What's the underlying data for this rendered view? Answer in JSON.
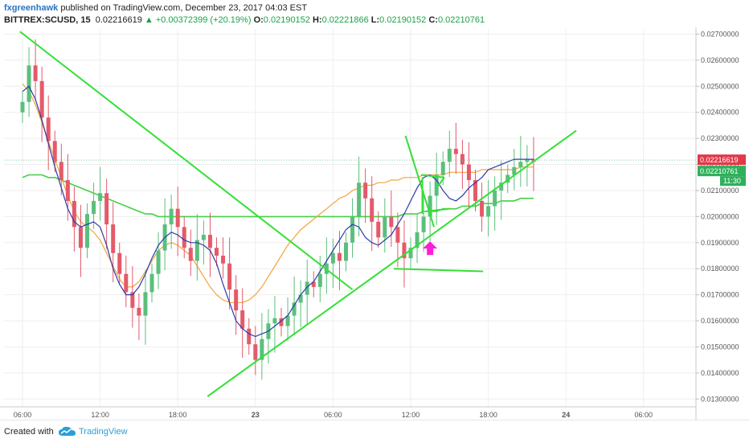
{
  "header": {
    "author": "fxgreenhawk",
    "published": "published on TradingView.com, December 23, 2017 04:03 EST",
    "symbol": "BITTREX:SCUSD, 15",
    "last": "0.02216619",
    "change": "▲ +0.00372399 (+20.19%)",
    "o_label": "O:",
    "o": "0.02190152",
    "h_label": "H:",
    "h": "0.02221866",
    "l_label": "L:",
    "l": "0.02190152",
    "c_label": "C:",
    "c": "0.02210761"
  },
  "footer": {
    "created_with": "Created with",
    "brand": "TradingView"
  },
  "colors": {
    "up": "#5bbf7c",
    "down": "#e45a6a",
    "ma_fast": "#2d3aa8",
    "ma_mid": "#f2a43c",
    "ma_slow": "#46d046",
    "trend": "#33e033",
    "arrow": "#ff1fd8",
    "price_badge": "#e0394a",
    "close_badge": "#2fb05b"
  },
  "chart_data": {
    "type": "candlestick",
    "title": "BITTREX:SCUSD, 15",
    "x_ticks": [
      "06:00",
      "12:00",
      "18:00",
      "23",
      "06:00",
      "12:00",
      "18:00",
      "24",
      "06:00"
    ],
    "y_ticks": [
      "0.02700000",
      "0.02600000",
      "0.02500000",
      "0.02400000",
      "0.02300000",
      "0.02200000",
      "0.02100000",
      "0.02000000",
      "0.01900000",
      "0.01800000",
      "0.01700000",
      "0.01600000",
      "0.01500000",
      "0.01400000",
      "0.01300000"
    ],
    "ylim": [
      0.0127,
      0.0272
    ],
    "price_labels": {
      "last": "0.02216619",
      "close": "0.02210761",
      "countdown": "11:30"
    },
    "candles_hours": [
      0.0,
      0.5,
      1.0,
      1.5,
      2.0,
      2.5,
      3.0,
      3.5,
      4.0,
      4.5,
      5.0,
      5.5,
      6.0,
      6.5,
      7.0,
      7.5,
      8.0,
      8.5,
      9.0,
      9.5,
      10.0,
      10.5,
      11.0,
      11.5,
      12.0,
      12.5,
      13.0,
      13.5,
      14.0,
      14.5,
      15.0,
      15.5,
      16.0,
      16.5,
      17.0,
      17.5,
      18.0,
      18.5,
      19.0,
      19.5,
      20.0,
      20.5,
      21.0,
      21.5,
      22.0,
      22.5,
      23.0,
      23.5,
      24.0,
      24.5,
      25.0,
      25.5,
      26.0,
      26.5,
      27.0,
      27.5,
      28.0,
      28.5,
      29.0,
      29.5,
      30.0,
      30.5,
      31.0,
      31.5,
      32.0,
      32.5,
      33.0,
      33.5,
      34.0,
      34.5,
      35.0,
      35.5,
      36.0,
      36.5,
      37.0,
      37.5,
      38.0,
      38.5,
      39.0,
      39.5
    ],
    "close": [
      0.0244,
      0.0258,
      0.0252,
      0.0238,
      0.0229,
      0.0221,
      0.0214,
      0.0206,
      0.0196,
      0.0188,
      0.0201,
      0.0206,
      0.0209,
      0.0197,
      0.0186,
      0.0178,
      0.0171,
      0.0165,
      0.0162,
      0.0171,
      0.0178,
      0.0187,
      0.0197,
      0.0203,
      0.0196,
      0.0188,
      0.0183,
      0.0191,
      0.0193,
      0.0188,
      0.0185,
      0.0182,
      0.0172,
      0.0164,
      0.0157,
      0.0151,
      0.0145,
      0.0153,
      0.0159,
      0.0161,
      0.0158,
      0.0162,
      0.0167,
      0.017,
      0.0175,
      0.0173,
      0.0178,
      0.0182,
      0.0186,
      0.0183,
      0.019,
      0.02,
      0.0213,
      0.0207,
      0.0198,
      0.0192,
      0.02,
      0.0196,
      0.019,
      0.0184,
      0.0188,
      0.0194,
      0.02,
      0.0208,
      0.0216,
      0.0221,
      0.0226,
      0.0224,
      0.022,
      0.0214,
      0.0206,
      0.02,
      0.0204,
      0.021,
      0.0213,
      0.0216,
      0.0219,
      0.0221,
      0.0222,
      0.0221
    ],
    "series": [
      {
        "name": "",
        "values": [
          0.0248,
          0.025,
          0.0245,
          0.0237,
          0.0228,
          0.0219,
          0.0211,
          0.0203,
          0.0198,
          0.0196,
          0.0197,
          0.0198,
          0.0196,
          0.0189,
          0.018,
          0.0174,
          0.017,
          0.017,
          0.0173,
          0.0178,
          0.0184,
          0.0189,
          0.0192,
          0.0194,
          0.0193,
          0.0191,
          0.019,
          0.019,
          0.0189,
          0.0187,
          0.0182,
          0.0174,
          0.0167,
          0.016,
          0.0157,
          0.0155,
          0.0154,
          0.0155,
          0.0156,
          0.0158,
          0.016,
          0.0162,
          0.0166,
          0.017,
          0.0173,
          0.0175,
          0.0179,
          0.0183,
          0.0187,
          0.0191,
          0.0195,
          0.0197,
          0.0196,
          0.0192,
          0.019,
          0.0189,
          0.0191,
          0.0193,
          0.0197,
          0.0201,
          0.0206,
          0.0211,
          0.0215,
          0.0216,
          0.0214,
          0.021,
          0.0207,
          0.0206,
          0.0208,
          0.0211,
          0.0213,
          0.0215,
          0.0218,
          0.0219,
          0.022,
          0.0221,
          0.0222,
          0.0222,
          0.0222,
          0.0222
        ]
      },
      {
        "name": "",
        "values": [
          0.0251,
          0.0248,
          0.0243,
          0.0236,
          0.0229,
          0.0222,
          0.0215,
          0.0208,
          0.0202,
          0.0198,
          0.0196,
          0.0194,
          0.0191,
          0.0186,
          0.0181,
          0.0176,
          0.0173,
          0.0173,
          0.0175,
          0.0179,
          0.0183,
          0.0187,
          0.0189,
          0.019,
          0.0189,
          0.0187,
          0.0185,
          0.0181,
          0.0177,
          0.0173,
          0.017,
          0.0168,
          0.0167,
          0.0167,
          0.0167,
          0.0168,
          0.017,
          0.0173,
          0.0177,
          0.0181,
          0.0185,
          0.0189,
          0.0192,
          0.0195,
          0.0197,
          0.0199,
          0.0201,
          0.0203,
          0.0205,
          0.0207,
          0.0208,
          0.021,
          0.0211,
          0.0212,
          0.0212,
          0.0213,
          0.0213,
          0.0214,
          0.0214,
          0.0215,
          0.0215,
          0.0215,
          0.0216,
          0.0216,
          0.0216,
          0.0216,
          0.0217,
          0.0217,
          0.0217,
          0.0217,
          0.0217,
          0.0218,
          0.0218,
          0.0218,
          0.0218,
          0.0218,
          0.0218,
          0.0219,
          0.0219,
          0.0219
        ]
      },
      {
        "name": "",
        "values": [
          0.0215,
          0.0216,
          0.0216,
          0.0216,
          0.0215,
          0.0215,
          0.0214,
          0.0213,
          0.0212,
          0.0211,
          0.021,
          0.0209,
          0.0208,
          0.0207,
          0.0206,
          0.0205,
          0.0204,
          0.0203,
          0.0202,
          0.0201,
          0.0201,
          0.02,
          0.02,
          0.02,
          0.02,
          0.02,
          0.02,
          0.02,
          0.02,
          0.02,
          0.02,
          0.02,
          0.02,
          0.02,
          0.02,
          0.02,
          0.02,
          0.02,
          0.02,
          0.02,
          0.02,
          0.02,
          0.02,
          0.02,
          0.02,
          0.02,
          0.02,
          0.02,
          0.02,
          0.02,
          0.02,
          0.02,
          0.02,
          0.02,
          0.02,
          0.02,
          0.02,
          0.02,
          0.02,
          0.0201,
          0.0201,
          0.0201,
          0.0202,
          0.0202,
          0.0202,
          0.0203,
          0.0203,
          0.0203,
          0.0204,
          0.0204,
          0.0204,
          0.0205,
          0.0205,
          0.0205,
          0.0206,
          0.0206,
          0.0206,
          0.0207,
          0.0207,
          0.0207
        ]
      }
    ],
    "grid": true,
    "legend": "none"
  }
}
